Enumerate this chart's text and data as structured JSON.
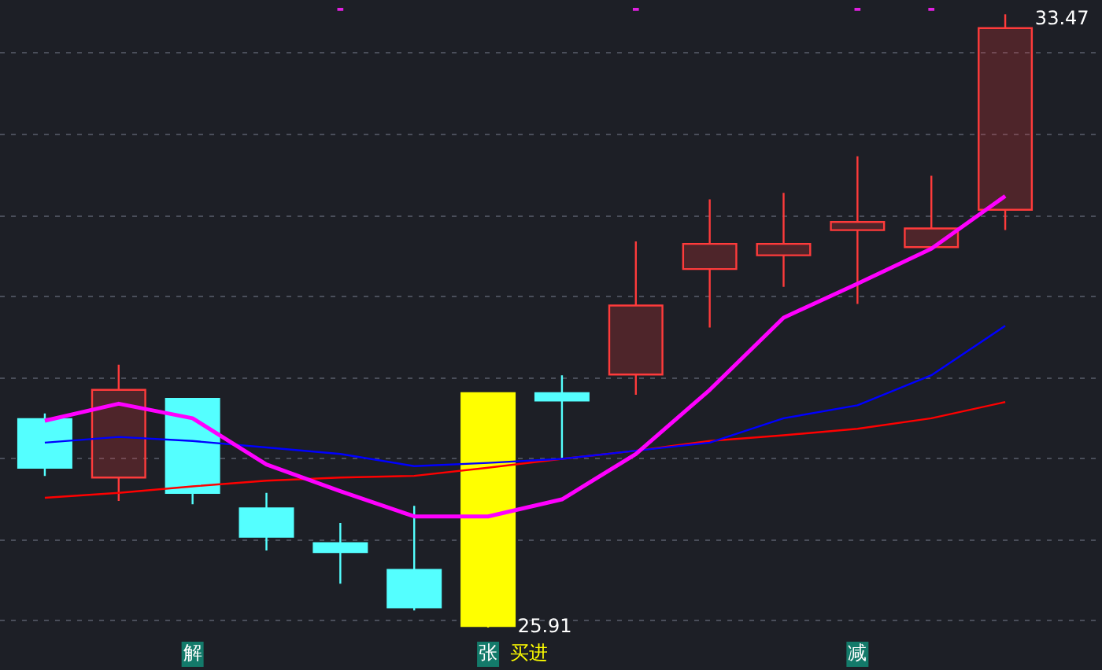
{
  "chart_data": {
    "type": "candlestick",
    "categories": [
      null,
      null,
      "解",
      null,
      null,
      null,
      "张",
      null,
      null,
      null,
      null,
      "减",
      null,
      null
    ],
    "ohlc": [
      [
        28.48,
        28.55,
        27.78,
        27.88
      ],
      [
        27.76,
        29.15,
        27.47,
        28.84
      ],
      [
        28.73,
        28.73,
        27.43,
        27.57
      ],
      [
        27.38,
        27.57,
        26.86,
        27.03
      ],
      [
        26.95,
        27.2,
        26.45,
        26.84
      ],
      [
        26.62,
        27.41,
        26.12,
        26.16
      ],
      [
        25.93,
        28.8,
        25.91,
        28.8
      ],
      [
        28.8,
        29.02,
        27.99,
        28.71
      ],
      [
        29.03,
        30.67,
        28.78,
        29.88
      ],
      [
        30.33,
        31.19,
        29.61,
        30.64
      ],
      [
        30.5,
        31.27,
        30.11,
        30.64
      ],
      [
        30.81,
        31.72,
        29.9,
        30.91
      ],
      [
        30.6,
        31.48,
        30.6,
        30.83
      ],
      [
        31.06,
        33.47,
        30.81,
        33.3
      ]
    ],
    "colors": [
      "#54ffff",
      "#ff3b3b",
      "#54ffff",
      "#54ffff",
      "#54ffff",
      "#54ffff",
      "#ffff00",
      "#54ffff",
      "#ff3b3b",
      "#ff3b3b",
      "#ff3b3b",
      "#ff3b3b",
      "#ff3b3b",
      "#ff3b3b"
    ],
    "series": [
      {
        "type": "line",
        "color": "#ff00ff",
        "values": [
          28.46,
          28.67,
          28.49,
          27.92,
          27.59,
          27.28,
          27.28,
          27.49,
          28.05,
          28.84,
          29.73,
          30.15,
          30.58,
          31.23
        ]
      },
      {
        "type": "line",
        "color": "#0000ff",
        "values": [
          28.19,
          28.26,
          28.21,
          28.13,
          28.05,
          27.9,
          27.94,
          27.99,
          28.09,
          28.19,
          28.49,
          28.65,
          29.02,
          29.63
        ]
      },
      {
        "type": "line",
        "color": "#ff0000",
        "values": [
          27.51,
          27.57,
          27.65,
          27.72,
          27.76,
          27.78,
          27.88,
          27.99,
          28.09,
          28.21,
          28.28,
          28.36,
          28.49,
          28.69
        ]
      },
      {
        "type": "scatter",
        "color": "#e020e0",
        "marker": "square",
        "values": [
          null,
          null,
          null,
          null,
          33.55,
          null,
          null,
          null,
          33.55,
          null,
          null,
          33.55,
          33.55,
          null
        ]
      }
    ],
    "yticks": [
      {
        "value": 26,
        "label": null
      },
      {
        "value": 27,
        "label": null
      },
      {
        "value": 28,
        "label": null
      },
      {
        "value": 29,
        "label": null
      },
      {
        "value": 30,
        "label": null
      },
      {
        "value": 31,
        "label": null
      },
      {
        "value": 32,
        "label": null
      },
      {
        "value": 33,
        "label": null
      }
    ],
    "grid": "y",
    "tick_labels": "x",
    "legend": false,
    "annotations": [
      "33.47",
      "25.91",
      "买进"
    ]
  }
}
